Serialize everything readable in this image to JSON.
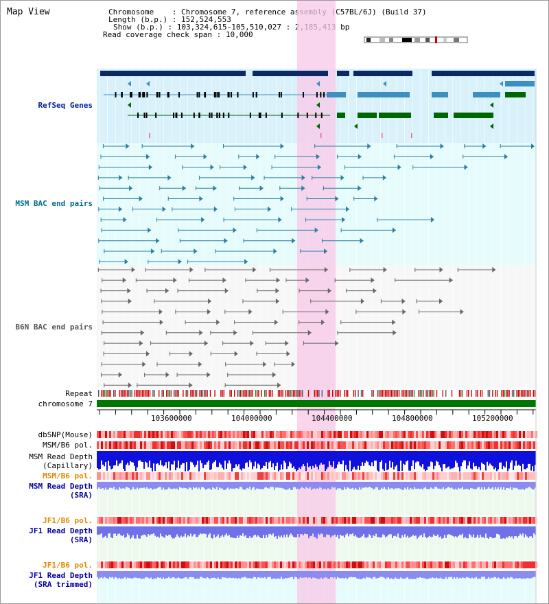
{
  "view_title": "Map View",
  "header": {
    "chromosome_label": "Chromosome",
    "chromosome_value": "Chromosome 7, reference assembly (C57BL/6J) (Build 37)",
    "length_label": "Length (b.p.)",
    "length_value": "152,524,553",
    "show_label": "Show (b.p.)",
    "show_value": "103,324,615-105,510,027 : 2,185,413 bp",
    "coverage_label": "Read coverage check span",
    "coverage_value": "10,000"
  },
  "tracks": {
    "refseq": "RefSeq Genes",
    "msm_bac": "MSM BAC end pairs",
    "b6n_bac": "B6N BAC end pairs",
    "repeat": "Repeat",
    "chromosome": "chromosome 7",
    "dbsnp": "dbSNP(Mouse)",
    "msm_b6_pol_1": "MSM/B6 pol.",
    "msm_read_depth_cap": "MSM Read Depth\n(Capillary)",
    "msm_b6_pol_2": "MSM/B6 pol.",
    "msm_read_depth_sra": "MSM Read Depth\n(SRA)",
    "jf1_b6_pol_1": "JF1/B6 pol.",
    "jf1_read_depth_sra": "JF1 Read Depth\n(SRA)",
    "jf1_b6_pol_2": "JF1/B6 pol.",
    "jf1_read_depth_trim": "JF1 Read Depth\n(SRA trimmed)"
  },
  "ruler": {
    "labels": [
      "103600000",
      "104000000",
      "104400000",
      "104800000",
      "105200000"
    ]
  },
  "colors": {
    "refseq_label": "#00209f",
    "msm_label": "#006b8f",
    "b6n_label": "#555555",
    "pol_label": "#e08a00",
    "depth_label": "#0000a0",
    "highlight": "#f8c8e8",
    "gene_dark": "#0a2a66",
    "gene_mid": "#3d8fc2",
    "gene_green": "#006600"
  }
}
